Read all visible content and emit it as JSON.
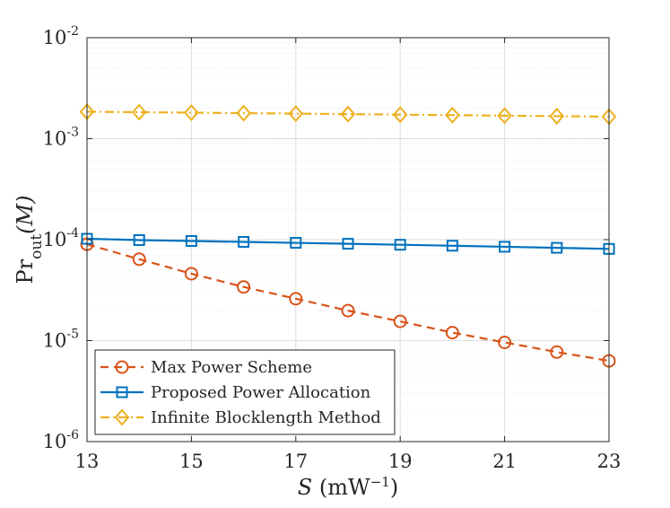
{
  "chart_data": {
    "type": "line",
    "yscale": "log",
    "x": [
      13,
      14,
      15,
      16,
      17,
      18,
      19,
      20,
      21,
      22,
      23
    ],
    "xlim": [
      13,
      23
    ],
    "ylim": [
      1e-06,
      0.01
    ],
    "x_ticks": [
      13,
      15,
      17,
      19,
      21,
      23
    ],
    "x_tick_labels": [
      "13",
      "15",
      "17",
      "19",
      "21",
      "23"
    ],
    "y_ticks": [
      {
        "base": "10",
        "exp": "-6",
        "value": 1e-06
      },
      {
        "base": "10",
        "exp": "-5",
        "value": 1e-05
      },
      {
        "base": "10",
        "exp": "-4",
        "value": 0.0001
      },
      {
        "base": "10",
        "exp": "-3",
        "value": 0.001
      },
      {
        "base": "10",
        "exp": "-2",
        "value": 0.01
      }
    ],
    "xlabel": {
      "var": "S",
      "unit_open": "(mW",
      "unit_exp": "−1",
      "unit_close": ")"
    },
    "ylabel": {
      "main": "Pr",
      "sub": "out",
      "arg": "(M)"
    },
    "grid": true,
    "legend_position": "bottom-left",
    "series": [
      {
        "name": "Max Power Scheme",
        "color": "#D95319",
        "linestyle": "dashed",
        "marker": "circle",
        "values": [
          9e-05,
          6.4e-05,
          4.6e-05,
          3.4e-05,
          2.6e-05,
          1.98e-05,
          1.55e-05,
          1.2e-05,
          9.6e-06,
          7.7e-06,
          6.3e-06
        ]
      },
      {
        "name": "Proposed Power Allocation",
        "color": "#0072BD",
        "linestyle": "solid",
        "marker": "square",
        "values": [
          0.000102,
          9.9e-05,
          9.7e-05,
          9.5e-05,
          9.3e-05,
          9.1e-05,
          8.9e-05,
          8.7e-05,
          8.5e-05,
          8.3e-05,
          8.1e-05
        ]
      },
      {
        "name": "Infinite Blocklength Method",
        "color": "#EDB120",
        "linestyle": "dashdot",
        "marker": "diamond",
        "values": [
          0.00185,
          0.00183,
          0.00181,
          0.00179,
          0.00177,
          0.00175,
          0.00173,
          0.00171,
          0.00169,
          0.00167,
          0.00165
        ]
      }
    ]
  }
}
